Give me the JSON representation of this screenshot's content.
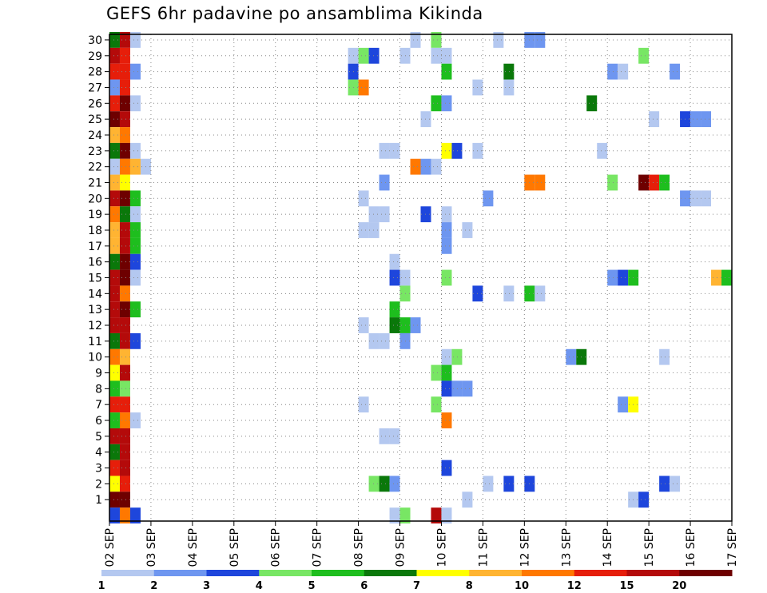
{
  "chart_data": {
    "type": "heatmap",
    "title": "GEFS 6hr padavine po ansamblima Kikinda",
    "y_ticks": [
      "1",
      "2",
      "3",
      "4",
      "5",
      "6",
      "7",
      "8",
      "9",
      "10",
      "11",
      "12",
      "13",
      "14",
      "15",
      "16",
      "17",
      "18",
      "19",
      "20",
      "21",
      "22",
      "23",
      "24",
      "25",
      "26",
      "27",
      "28",
      "29",
      "30"
    ],
    "x_ticks": [
      "02 SEP",
      "03 SEP",
      "04 SEP",
      "05 SEP",
      "06 SEP",
      "07 SEP",
      "08 SEP",
      "09 SEP",
      "10 SEP",
      "11 SEP",
      "12 SEP",
      "13 SEP",
      "14 SEP",
      "15 SEP",
      "16 SEP",
      "17 SEP"
    ],
    "x_range_days": [
      0,
      15
    ],
    "y_range": [
      0,
      30
    ],
    "grid": true,
    "legend": {
      "placement": "bottom",
      "colors": [
        "#b4c8f0",
        "#6e96f0",
        "#1e46dc",
        "#78e664",
        "#1ebe1e",
        "#0a780a",
        "#ffff00",
        "#ffb432",
        "#ff7800",
        "#e61e0a",
        "#b40a0a",
        "#6e0000"
      ],
      "labels": [
        "1",
        "2",
        "3",
        "4",
        "5",
        "6",
        "7",
        "8",
        "10",
        "12",
        "15",
        "20"
      ]
    },
    "cells": [
      [
        0.0,
        30,
        6
      ],
      [
        0.25,
        30,
        11
      ],
      [
        0.5,
        30,
        1
      ],
      [
        7.25,
        30,
        1
      ],
      [
        7.75,
        30,
        4
      ],
      [
        9.25,
        30,
        1
      ],
      [
        10.0,
        30,
        2
      ],
      [
        10.25,
        30,
        2
      ],
      [
        0.0,
        29,
        11
      ],
      [
        0.25,
        29,
        10
      ],
      [
        5.75,
        29,
        1
      ],
      [
        6.0,
        29,
        4
      ],
      [
        6.25,
        29,
        3
      ],
      [
        7.0,
        29,
        1
      ],
      [
        7.75,
        29,
        1
      ],
      [
        8.0,
        29,
        1
      ],
      [
        12.75,
        29,
        4
      ],
      [
        0.0,
        28,
        10
      ],
      [
        0.25,
        28,
        10
      ],
      [
        0.5,
        28,
        2
      ],
      [
        5.75,
        28,
        3
      ],
      [
        8.0,
        28,
        5
      ],
      [
        9.5,
        28,
        6
      ],
      [
        12.0,
        28,
        2
      ],
      [
        12.25,
        28,
        1
      ],
      [
        13.5,
        28,
        2
      ],
      [
        0.0,
        27,
        2
      ],
      [
        0.25,
        27,
        10
      ],
      [
        5.75,
        27,
        4
      ],
      [
        6.0,
        27,
        9
      ],
      [
        8.75,
        27,
        1
      ],
      [
        9.5,
        27,
        1
      ],
      [
        0.0,
        26,
        10
      ],
      [
        0.25,
        26,
        12
      ],
      [
        0.5,
        26,
        1
      ],
      [
        7.75,
        26,
        5
      ],
      [
        8.0,
        26,
        2
      ],
      [
        11.5,
        26,
        6
      ],
      [
        0.0,
        25,
        12
      ],
      [
        0.25,
        25,
        11
      ],
      [
        7.5,
        25,
        1
      ],
      [
        13.0,
        25,
        1
      ],
      [
        13.75,
        25,
        3
      ],
      [
        14.0,
        25,
        2
      ],
      [
        14.25,
        25,
        2
      ],
      [
        0.0,
        24,
        8
      ],
      [
        0.25,
        24,
        9
      ],
      [
        0.0,
        23,
        6
      ],
      [
        0.25,
        23,
        12
      ],
      [
        0.5,
        23,
        1
      ],
      [
        6.5,
        23,
        1
      ],
      [
        6.75,
        23,
        1
      ],
      [
        8.0,
        23,
        7
      ],
      [
        8.25,
        23,
        3
      ],
      [
        8.75,
        23,
        1
      ],
      [
        11.75,
        23,
        1
      ],
      [
        0.0,
        22,
        1
      ],
      [
        0.25,
        22,
        9
      ],
      [
        0.5,
        22,
        8
      ],
      [
        0.75,
        22,
        1
      ],
      [
        7.25,
        22,
        9
      ],
      [
        7.5,
        22,
        2
      ],
      [
        7.75,
        22,
        1
      ],
      [
        0.0,
        21,
        8
      ],
      [
        0.25,
        21,
        7
      ],
      [
        6.5,
        21,
        2
      ],
      [
        10.0,
        21,
        9
      ],
      [
        10.25,
        21,
        9
      ],
      [
        12.0,
        21,
        4
      ],
      [
        12.75,
        21,
        12
      ],
      [
        13.0,
        21,
        10
      ],
      [
        13.25,
        21,
        5
      ],
      [
        0.0,
        20,
        11
      ],
      [
        0.25,
        20,
        12
      ],
      [
        0.5,
        20,
        5
      ],
      [
        6.0,
        20,
        1
      ],
      [
        9.0,
        20,
        2
      ],
      [
        13.75,
        20,
        2
      ],
      [
        14.0,
        20,
        1
      ],
      [
        14.25,
        20,
        1
      ],
      [
        0.0,
        19,
        9
      ],
      [
        0.25,
        19,
        6
      ],
      [
        0.5,
        19,
        1
      ],
      [
        6.25,
        19,
        1
      ],
      [
        6.5,
        19,
        1
      ],
      [
        7.5,
        19,
        3
      ],
      [
        8.0,
        19,
        1
      ],
      [
        0.0,
        18,
        8
      ],
      [
        0.25,
        18,
        11
      ],
      [
        0.5,
        18,
        5
      ],
      [
        6.0,
        18,
        1
      ],
      [
        6.25,
        18,
        1
      ],
      [
        8.0,
        18,
        2
      ],
      [
        8.5,
        18,
        1
      ],
      [
        0.0,
        17,
        8
      ],
      [
        0.25,
        17,
        11
      ],
      [
        0.5,
        17,
        5
      ],
      [
        8.0,
        17,
        2
      ],
      [
        0.0,
        16,
        6
      ],
      [
        0.25,
        16,
        12
      ],
      [
        0.5,
        16,
        3
      ],
      [
        6.75,
        16,
        1
      ],
      [
        0.0,
        15,
        11
      ],
      [
        0.25,
        15,
        12
      ],
      [
        0.5,
        15,
        1
      ],
      [
        6.75,
        15,
        3
      ],
      [
        7.0,
        15,
        1
      ],
      [
        8.0,
        15,
        4
      ],
      [
        12.0,
        15,
        2
      ],
      [
        12.25,
        15,
        3
      ],
      [
        12.5,
        15,
        5
      ],
      [
        14.5,
        15,
        8
      ],
      [
        14.75,
        15,
        5
      ],
      [
        0.0,
        14,
        11
      ],
      [
        0.25,
        14,
        9
      ],
      [
        7.0,
        14,
        4
      ],
      [
        8.75,
        14,
        3
      ],
      [
        9.5,
        14,
        1
      ],
      [
        10.0,
        14,
        5
      ],
      [
        10.25,
        14,
        1
      ],
      [
        0.0,
        13,
        11
      ],
      [
        0.25,
        13,
        12
      ],
      [
        0.5,
        13,
        5
      ],
      [
        6.75,
        13,
        5
      ],
      [
        0.0,
        12,
        11
      ],
      [
        0.25,
        12,
        11
      ],
      [
        6.0,
        12,
        1
      ],
      [
        6.75,
        12,
        6
      ],
      [
        7.0,
        12,
        5
      ],
      [
        7.25,
        12,
        2
      ],
      [
        0.0,
        11,
        6
      ],
      [
        0.25,
        11,
        11
      ],
      [
        0.5,
        11,
        3
      ],
      [
        6.25,
        11,
        1
      ],
      [
        6.5,
        11,
        1
      ],
      [
        7.0,
        11,
        2
      ],
      [
        0.0,
        10,
        9
      ],
      [
        0.25,
        10,
        8
      ],
      [
        8.0,
        10,
        1
      ],
      [
        8.25,
        10,
        4
      ],
      [
        11.0,
        10,
        2
      ],
      [
        11.25,
        10,
        6
      ],
      [
        13.25,
        10,
        1
      ],
      [
        0.0,
        9,
        7
      ],
      [
        0.25,
        9,
        11
      ],
      [
        7.75,
        9,
        4
      ],
      [
        8.0,
        9,
        5
      ],
      [
        0.0,
        8,
        5
      ],
      [
        0.25,
        8,
        4
      ],
      [
        8.0,
        8,
        3
      ],
      [
        8.25,
        8,
        2
      ],
      [
        8.5,
        8,
        2
      ],
      [
        0.0,
        7,
        10
      ],
      [
        0.25,
        7,
        10
      ],
      [
        6.0,
        7,
        1
      ],
      [
        7.75,
        7,
        4
      ],
      [
        12.25,
        7,
        2
      ],
      [
        12.5,
        7,
        7
      ],
      [
        0.0,
        6,
        5
      ],
      [
        0.25,
        6,
        9
      ],
      [
        0.5,
        6,
        1
      ],
      [
        8.0,
        6,
        9
      ],
      [
        0.0,
        5,
        11
      ],
      [
        0.25,
        5,
        11
      ],
      [
        6.5,
        5,
        1
      ],
      [
        6.75,
        5,
        1
      ],
      [
        0.0,
        4,
        6
      ],
      [
        0.25,
        4,
        11
      ],
      [
        0.0,
        3,
        10
      ],
      [
        0.25,
        3,
        11
      ],
      [
        8.0,
        3,
        3
      ],
      [
        0.0,
        2,
        7
      ],
      [
        0.25,
        2,
        10
      ],
      [
        6.25,
        2,
        4
      ],
      [
        6.5,
        2,
        6
      ],
      [
        6.75,
        2,
        2
      ],
      [
        9.0,
        2,
        1
      ],
      [
        9.5,
        2,
        3
      ],
      [
        10.0,
        2,
        3
      ],
      [
        13.25,
        2,
        3
      ],
      [
        13.5,
        2,
        1
      ],
      [
        0.0,
        1,
        12
      ],
      [
        0.25,
        1,
        12
      ],
      [
        8.5,
        1,
        1
      ],
      [
        12.5,
        1,
        1
      ],
      [
        12.75,
        1,
        3
      ],
      [
        0.0,
        0,
        3
      ],
      [
        0.25,
        0,
        9
      ],
      [
        0.5,
        0,
        3
      ],
      [
        6.75,
        0,
        1
      ],
      [
        7.0,
        0,
        4
      ],
      [
        7.75,
        0,
        11
      ],
      [
        8.0,
        0,
        1
      ]
    ]
  }
}
